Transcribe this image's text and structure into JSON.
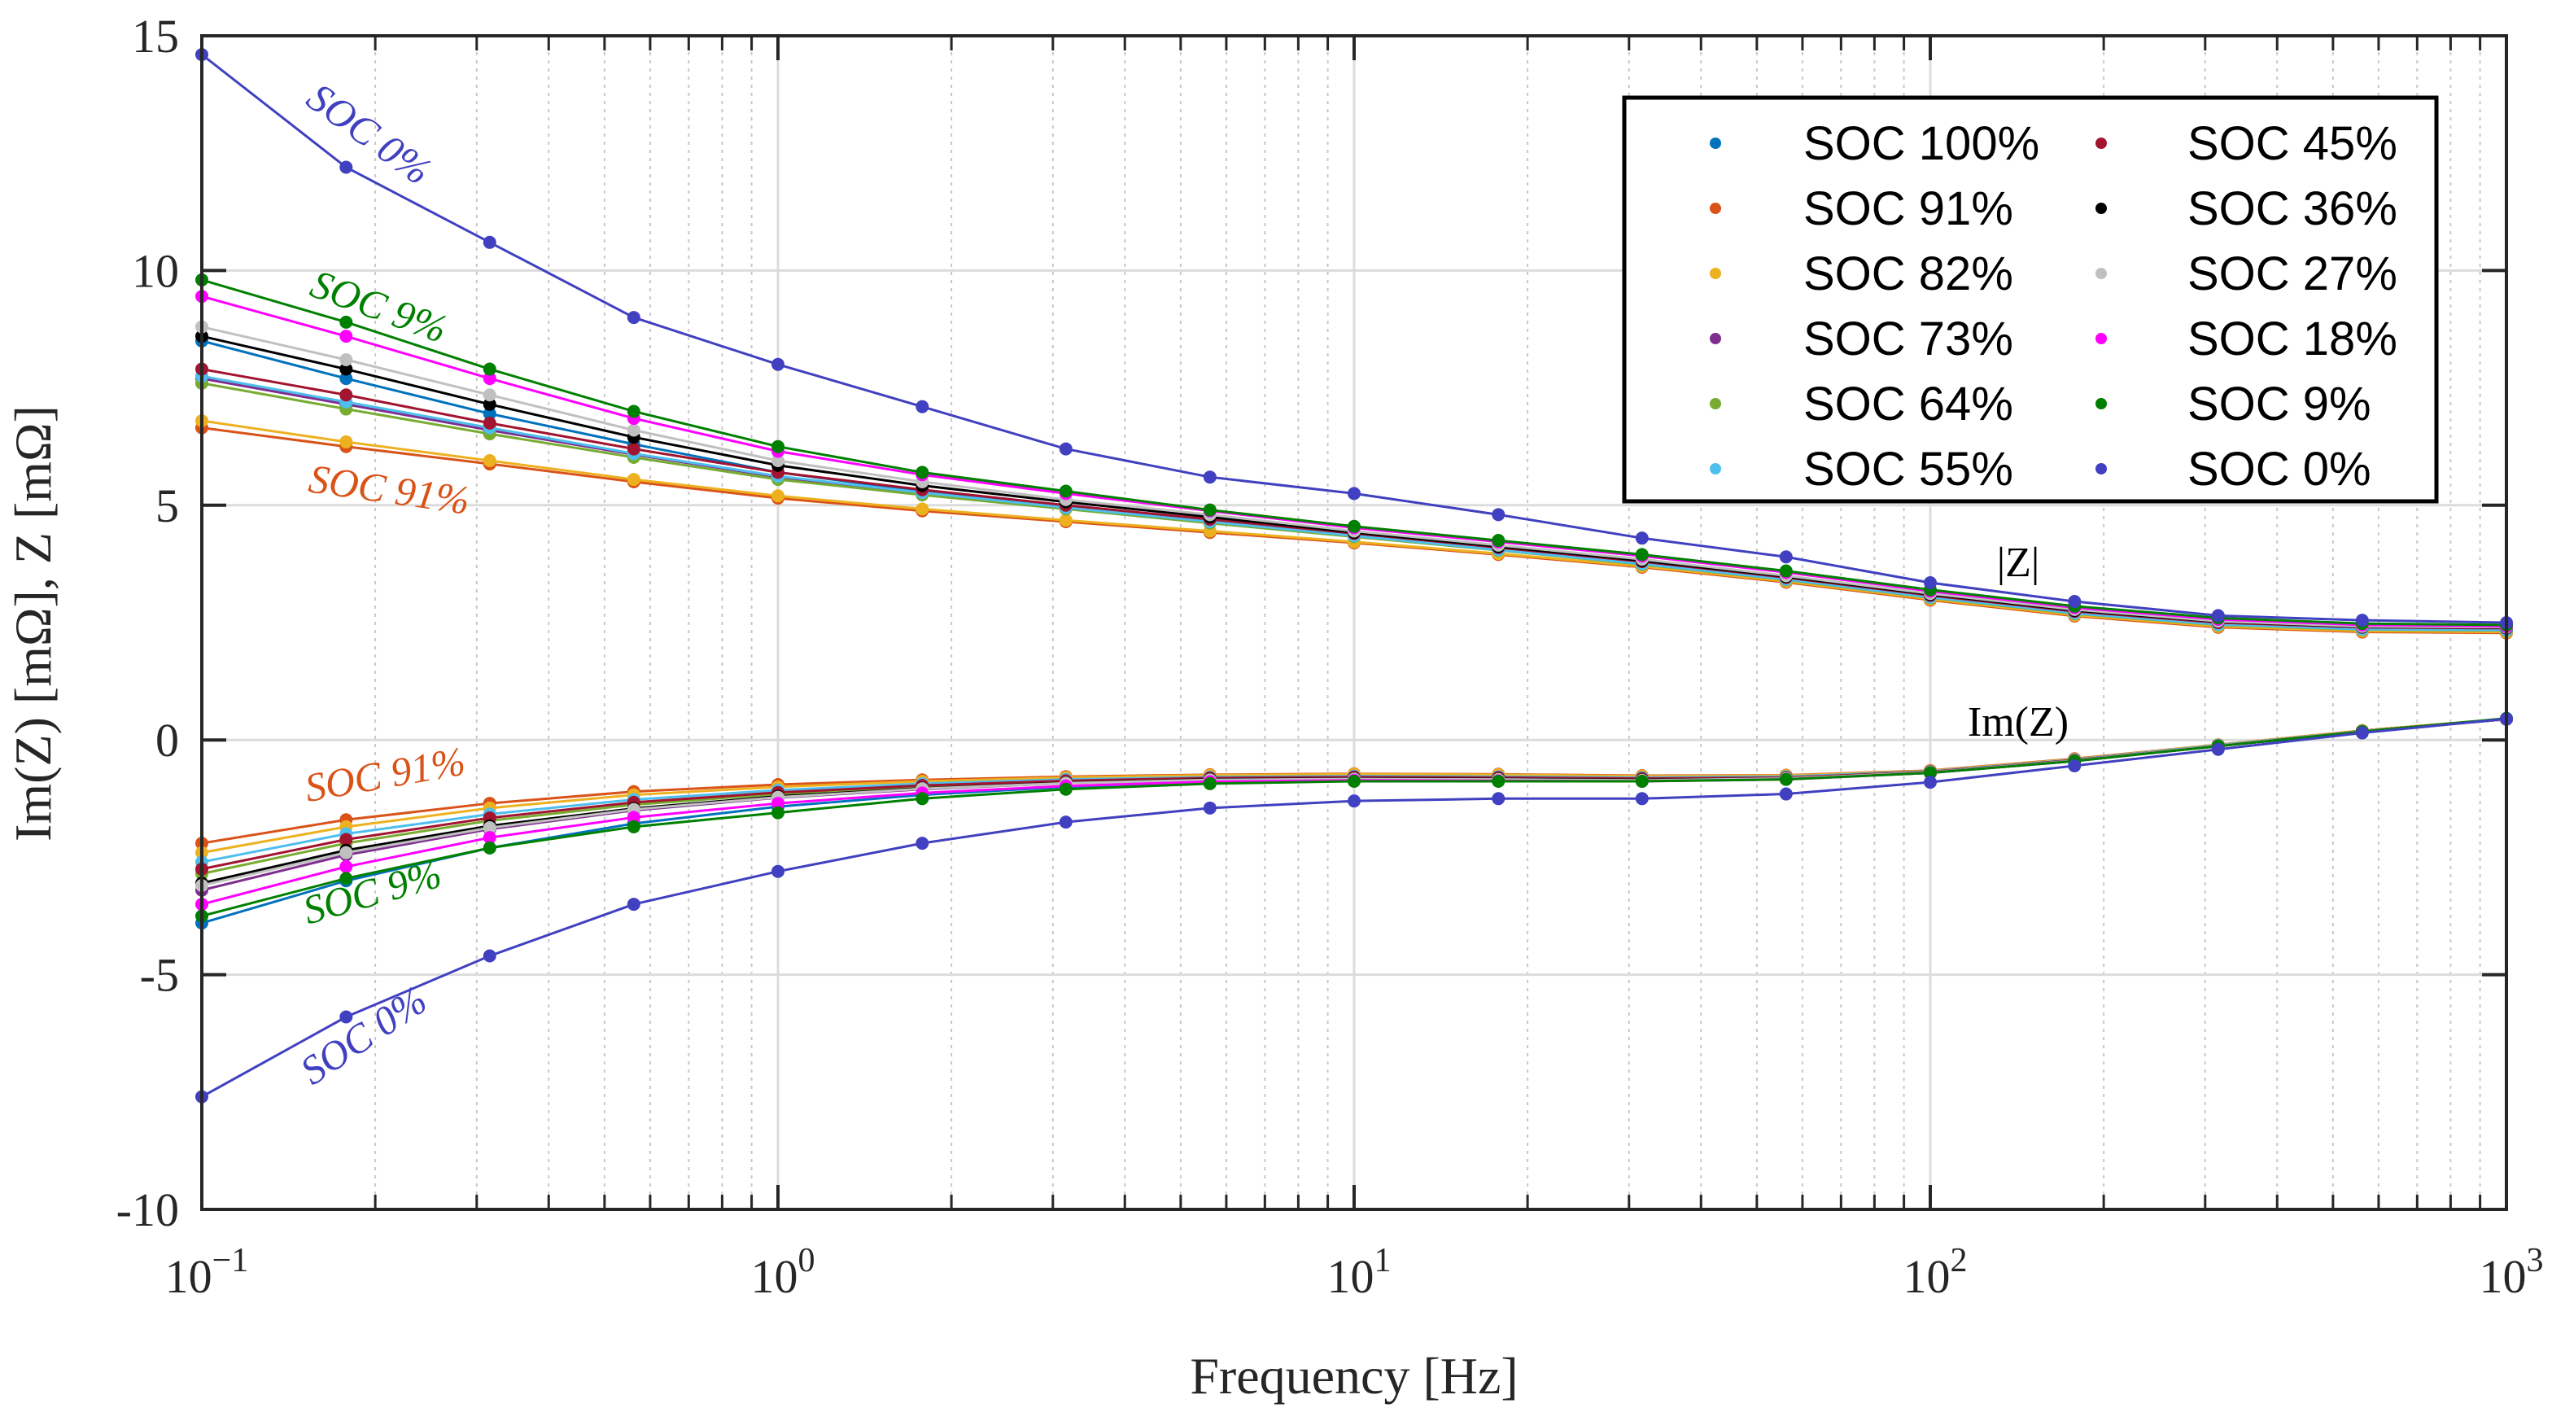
{
  "chart_data": {
    "type": "line",
    "xscale": "log",
    "xlabel": "Frequency [Hz]",
    "ylabel": "Im(Z) [mΩ], Z [mΩ]",
    "xlim": [
      0.1,
      1000
    ],
    "ylim": [
      -10,
      15
    ],
    "grid": true,
    "legend_placement": "top-right",
    "yticks": [
      "-10",
      "-5",
      "0",
      "5",
      "10",
      "15"
    ],
    "ytick_values": [
      -10,
      -5,
      0,
      5,
      10,
      15
    ],
    "xticks": [
      {
        "base": "10",
        "exp": "−1"
      },
      {
        "base": "10",
        "exp": "0"
      },
      {
        "base": "10",
        "exp": "1"
      },
      {
        "base": "10",
        "exp": "2"
      },
      {
        "base": "10",
        "exp": "3"
      }
    ],
    "xtick_values": [
      0.1,
      1,
      10,
      100,
      1000
    ],
    "x": [
      0.1,
      0.178,
      0.316,
      0.562,
      1,
      1.78,
      3.16,
      5.62,
      10,
      17.8,
      31.6,
      56.2,
      100,
      178,
      316,
      562,
      1000
    ],
    "series": [
      {
        "name": "SOC 100%",
        "color": "#0072BD",
        "absZ": [
          8.5,
          7.7,
          6.95,
          6.3,
          5.7,
          5.3,
          4.97,
          4.65,
          4.35,
          4.05,
          3.76,
          3.42,
          3.05,
          2.7,
          2.46,
          2.36,
          2.34
        ],
        "imZ": [
          -3.9,
          -3.0,
          -2.3,
          -1.78,
          -1.42,
          -1.17,
          -1.0,
          -0.9,
          -0.86,
          -0.86,
          -0.87,
          -0.83,
          -0.7,
          -0.45,
          -0.13,
          0.18,
          0.45
        ]
      },
      {
        "name": "SOC 91%",
        "color": "#D95319",
        "absZ": [
          6.65,
          6.25,
          5.88,
          5.5,
          5.15,
          4.88,
          4.65,
          4.42,
          4.2,
          3.95,
          3.68,
          3.36,
          2.98,
          2.64,
          2.4,
          2.3,
          2.28
        ],
        "imZ": [
          -2.2,
          -1.7,
          -1.35,
          -1.1,
          -0.95,
          -0.85,
          -0.78,
          -0.74,
          -0.72,
          -0.73,
          -0.76,
          -0.75,
          -0.65,
          -0.4,
          -0.1,
          0.2,
          0.45
        ]
      },
      {
        "name": "SOC 82%",
        "color": "#EDB120",
        "absZ": [
          6.8,
          6.35,
          5.95,
          5.55,
          5.2,
          4.92,
          4.68,
          4.45,
          4.22,
          3.97,
          3.7,
          3.38,
          3.0,
          2.66,
          2.42,
          2.32,
          2.3
        ],
        "imZ": [
          -2.4,
          -1.85,
          -1.45,
          -1.17,
          -1.0,
          -0.88,
          -0.8,
          -0.75,
          -0.73,
          -0.74,
          -0.77,
          -0.76,
          -0.66,
          -0.41,
          -0.1,
          0.2,
          0.45
        ]
      },
      {
        "name": "SOC 73%",
        "color": "#7E2F8E",
        "absZ": [
          7.7,
          7.15,
          6.6,
          6.08,
          5.6,
          5.25,
          4.94,
          4.64,
          4.35,
          4.06,
          3.76,
          3.43,
          3.05,
          2.71,
          2.47,
          2.37,
          2.35
        ],
        "imZ": [
          -3.2,
          -2.45,
          -1.9,
          -1.5,
          -1.23,
          -1.05,
          -0.92,
          -0.85,
          -0.83,
          -0.84,
          -0.86,
          -0.83,
          -0.7,
          -0.44,
          -0.13,
          0.18,
          0.44
        ]
      },
      {
        "name": "SOC 64%",
        "color": "#77AC30",
        "absZ": [
          7.6,
          7.05,
          6.52,
          6.02,
          5.55,
          5.22,
          4.92,
          4.62,
          4.33,
          4.04,
          3.74,
          3.41,
          3.03,
          2.69,
          2.45,
          2.35,
          2.33
        ],
        "imZ": [
          -2.85,
          -2.2,
          -1.72,
          -1.38,
          -1.15,
          -0.99,
          -0.88,
          -0.82,
          -0.8,
          -0.81,
          -0.83,
          -0.8,
          -0.68,
          -0.43,
          -0.12,
          0.19,
          0.44
        ]
      },
      {
        "name": "SOC 55%",
        "color": "#4DBEEE",
        "absZ": [
          7.75,
          7.2,
          6.65,
          6.1,
          5.62,
          5.27,
          4.95,
          4.65,
          4.35,
          4.05,
          3.75,
          3.42,
          3.04,
          2.7,
          2.46,
          2.36,
          2.34
        ],
        "imZ": [
          -2.6,
          -2.0,
          -1.58,
          -1.27,
          -1.07,
          -0.93,
          -0.84,
          -0.79,
          -0.77,
          -0.78,
          -0.8,
          -0.78,
          -0.67,
          -0.42,
          -0.11,
          0.19,
          0.44
        ]
      },
      {
        "name": "SOC 45%",
        "color": "#A2142F",
        "absZ": [
          7.9,
          7.35,
          6.75,
          6.2,
          5.7,
          5.33,
          5.0,
          4.7,
          4.4,
          4.1,
          3.8,
          3.46,
          3.08,
          2.74,
          2.5,
          2.4,
          2.38
        ],
        "imZ": [
          -2.75,
          -2.12,
          -1.66,
          -1.33,
          -1.12,
          -0.97,
          -0.87,
          -0.81,
          -0.79,
          -0.8,
          -0.82,
          -0.8,
          -0.68,
          -0.43,
          -0.12,
          0.19,
          0.44
        ]
      },
      {
        "name": "SOC 36%",
        "color": "#000000",
        "absZ": [
          8.6,
          7.9,
          7.15,
          6.45,
          5.85,
          5.42,
          5.07,
          4.75,
          4.42,
          4.12,
          3.82,
          3.48,
          3.1,
          2.76,
          2.52,
          2.41,
          2.39
        ],
        "imZ": [
          -3.05,
          -2.35,
          -1.83,
          -1.46,
          -1.2,
          -1.03,
          -0.91,
          -0.84,
          -0.82,
          -0.83,
          -0.85,
          -0.82,
          -0.69,
          -0.44,
          -0.12,
          0.19,
          0.44
        ]
      },
      {
        "name": "SOC 27%",
        "color": "#C0C0C0",
        "absZ": [
          8.8,
          8.1,
          7.35,
          6.6,
          5.95,
          5.5,
          5.12,
          4.8,
          4.45,
          4.15,
          3.85,
          3.5,
          3.12,
          2.78,
          2.53,
          2.42,
          2.4
        ],
        "imZ": [
          -3.1,
          -2.4,
          -1.87,
          -1.48,
          -1.22,
          -1.04,
          -0.92,
          -0.85,
          -0.83,
          -0.84,
          -0.86,
          -0.82,
          -0.69,
          -0.44,
          -0.12,
          0.19,
          0.44
        ]
      },
      {
        "name": "SOC 18%",
        "color": "#FF00FF",
        "absZ": [
          9.45,
          8.6,
          7.7,
          6.85,
          6.15,
          5.65,
          5.25,
          4.88,
          4.52,
          4.22,
          3.92,
          3.57,
          3.17,
          2.82,
          2.57,
          2.45,
          2.42
        ],
        "imZ": [
          -3.5,
          -2.7,
          -2.08,
          -1.65,
          -1.35,
          -1.13,
          -0.98,
          -0.89,
          -0.86,
          -0.87,
          -0.88,
          -0.84,
          -0.7,
          -0.45,
          -0.13,
          0.18,
          0.45
        ]
      },
      {
        "name": "SOC 9%",
        "color": "#008000",
        "absZ": [
          9.8,
          8.9,
          7.9,
          7.0,
          6.25,
          5.7,
          5.3,
          4.9,
          4.55,
          4.25,
          3.95,
          3.6,
          3.2,
          2.85,
          2.6,
          2.48,
          2.45
        ],
        "imZ": [
          -3.75,
          -2.95,
          -2.3,
          -1.85,
          -1.55,
          -1.25,
          -1.05,
          -0.93,
          -0.88,
          -0.88,
          -0.88,
          -0.84,
          -0.7,
          -0.45,
          -0.13,
          0.18,
          0.46
        ]
      },
      {
        "name": "SOC 0%",
        "color": "#4040C0",
        "absZ": [
          14.6,
          12.2,
          10.6,
          9.0,
          8.0,
          7.1,
          6.2,
          5.6,
          5.25,
          4.8,
          4.3,
          3.9,
          3.35,
          2.95,
          2.65,
          2.55,
          2.5
        ],
        "imZ": [
          -7.6,
          -5.9,
          -4.6,
          -3.5,
          -2.8,
          -2.2,
          -1.75,
          -1.45,
          -1.3,
          -1.25,
          -1.25,
          -1.15,
          -0.9,
          -0.55,
          -0.2,
          0.15,
          0.45
        ]
      }
    ],
    "annotations": {
      "top_soc0": "SOC 0%",
      "top_soc9": "SOC 9%",
      "top_soc91": "SOC 91%",
      "bot_soc91": "SOC 91%",
      "bot_soc9": "SOC 9%",
      "bot_soc0": "SOC 0%",
      "absZ_label": "|Z|",
      "imZ_label": "Im(Z)"
    }
  }
}
